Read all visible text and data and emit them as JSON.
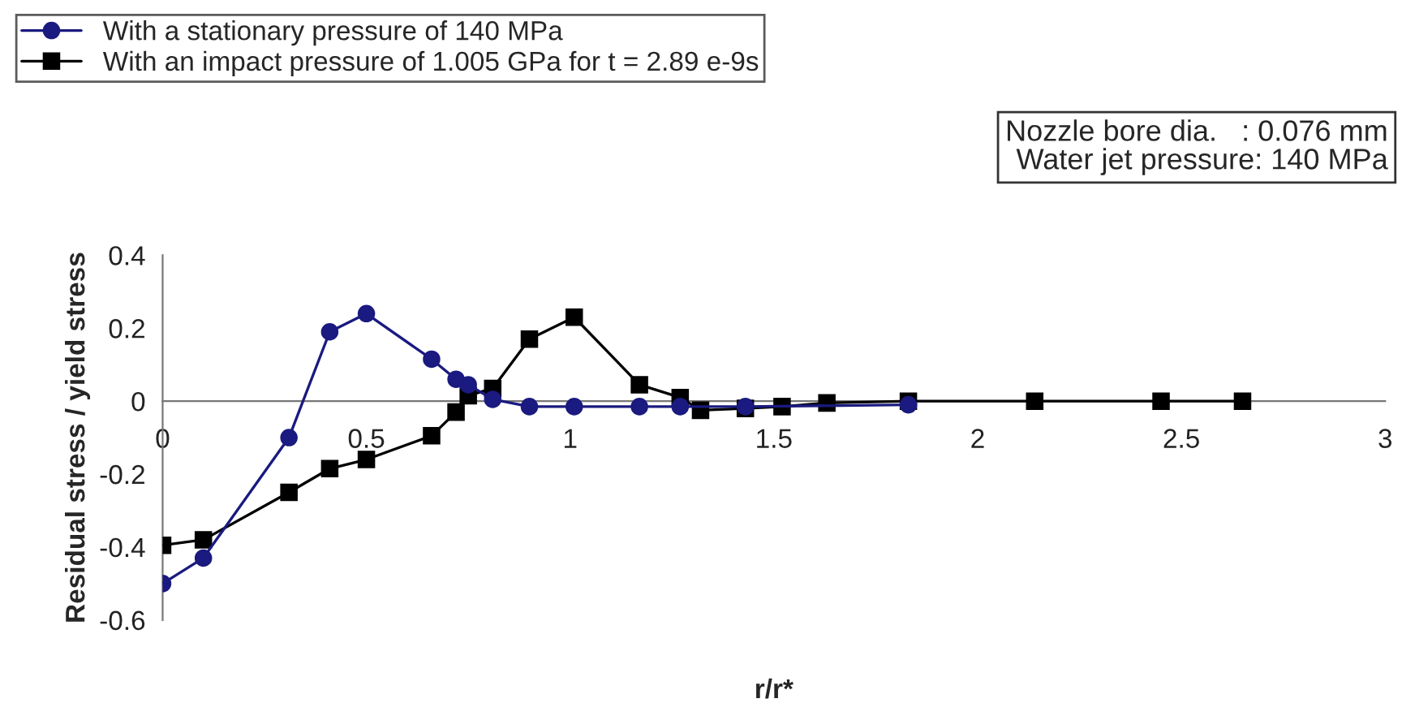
{
  "chart_data": {
    "type": "line",
    "xlabel": "r/r*",
    "ylabel": "Residual stress / yield stress",
    "xlim": [
      0,
      3
    ],
    "xticks": [
      0,
      0.5,
      1,
      1.5,
      2,
      2.5,
      3
    ],
    "ylim": [
      -0.6,
      0.4
    ],
    "yticks": [
      -0.6,
      -0.4,
      -0.2,
      0,
      0.2,
      0.4
    ],
    "grid": false,
    "legend": "top left",
    "line_style": "solid",
    "annotations": [
      "Nozzle bore dia.   : 0.076 mm",
      "Water jet pressure: 140 MPa"
    ],
    "series": [
      {
        "name": "With a stationary pressure of 140 MPa",
        "color": "#1a1a80",
        "marker": "circle",
        "x": [
          0,
          0.1,
          0.31,
          0.41,
          0.5,
          0.66,
          0.72,
          0.75,
          0.81,
          0.9,
          1.01,
          1.17,
          1.27,
          1.43,
          1.83
        ],
        "values": [
          -0.5,
          -0.43,
          -0.1,
          0.19,
          0.24,
          0.115,
          0.06,
          0.045,
          0.005,
          -0.015,
          -0.015,
          -0.015,
          -0.015,
          -0.015,
          -0.01
        ]
      },
      {
        "name": "With an impact pressure of 1.005 GPa for t = 2.89 e-9s",
        "color": "#000000",
        "marker": "square",
        "x": [
          0,
          0.1,
          0.31,
          0.41,
          0.5,
          0.66,
          0.72,
          0.75,
          0.81,
          0.9,
          1.01,
          1.17,
          1.27,
          1.32,
          1.43,
          1.52,
          1.63,
          1.83,
          2.14,
          2.45,
          2.65
        ],
        "values": [
          -0.395,
          -0.38,
          -0.25,
          -0.185,
          -0.16,
          -0.095,
          -0.03,
          0.015,
          0.035,
          0.17,
          0.23,
          0.045,
          0.01,
          -0.025,
          -0.02,
          -0.015,
          -0.005,
          0,
          0,
          0,
          0
        ]
      }
    ]
  }
}
